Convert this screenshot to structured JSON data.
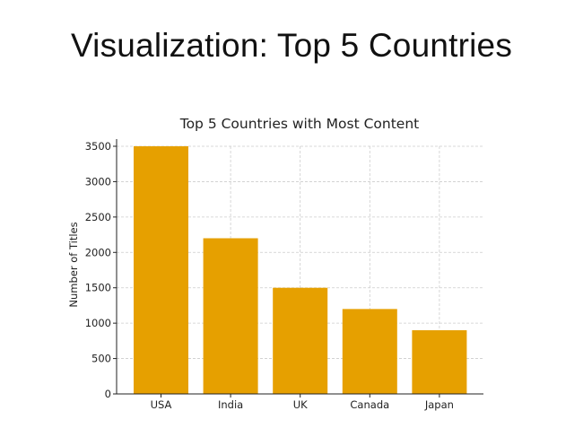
{
  "slide": {
    "title": "Visualization: Top 5 Countries"
  },
  "chart_data": {
    "type": "bar",
    "title": "Top 5 Countries with Most Content",
    "xlabel": "",
    "ylabel": "Number of Titles",
    "categories": [
      "USA",
      "India",
      "UK",
      "Canada",
      "Japan"
    ],
    "values": [
      3500,
      2200,
      1500,
      1200,
      900
    ],
    "ylim": [
      0,
      3500
    ],
    "yticks": [
      0,
      500,
      1000,
      1500,
      2000,
      2500,
      3000,
      3500
    ],
    "grid": true,
    "bar_color": "#e6a000",
    "grid_color": "#cccccc"
  }
}
